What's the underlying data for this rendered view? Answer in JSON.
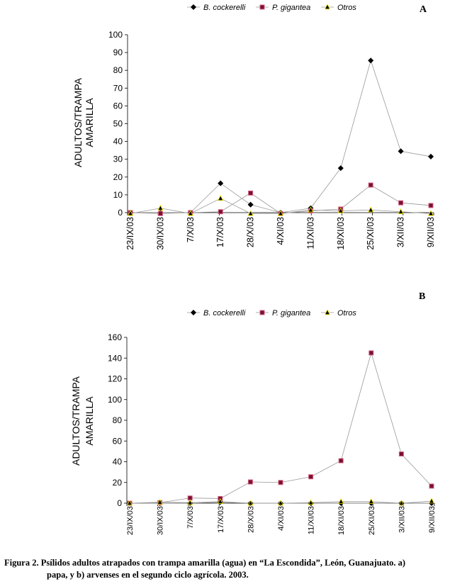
{
  "colors": {
    "line": "#999999",
    "axis": "#000000",
    "marker_bc": "#000000",
    "marker_pg": "#7a1030",
    "marker_otros": "#000000",
    "marker_otros_fill": "#f2e600",
    "marker_pg_fill": "#d06080"
  },
  "chart_data": [
    {
      "type": "line",
      "panel_label": "A",
      "ylabel_line1": "ADULTOS/TRAMPA",
      "ylabel_line2": "AMARILLA",
      "ylim": [
        0,
        100
      ],
      "yticks": [
        0,
        10,
        20,
        30,
        40,
        50,
        60,
        70,
        80,
        90,
        100
      ],
      "categories": [
        "23/IX/03",
        "30/IX/03",
        "7/X/03",
        "17/X/03",
        "28/X/03",
        "4/XI/03",
        "11/XI/03",
        "18/XI/03",
        "25/XI/03",
        "3/XII/03",
        "9/XII/03"
      ],
      "series": [
        {
          "name": "B. cockerelli",
          "marker": "diamond",
          "values": [
            0,
            0,
            0,
            16.5,
            4.5,
            0,
            2.5,
            25,
            85.5,
            34.5,
            31.5
          ]
        },
        {
          "name": "P. gigantea",
          "marker": "square",
          "values": [
            0,
            -0.5,
            0,
            0.5,
            11,
            -0.5,
            1,
            2,
            15.5,
            5.5,
            4
          ]
        },
        {
          "name": "Otros",
          "marker": "triangle",
          "values": [
            -0.5,
            2.5,
            -0.5,
            8,
            -0.5,
            -0.5,
            1.5,
            1,
            1.5,
            0.5,
            -0.5
          ]
        }
      ]
    },
    {
      "type": "line",
      "panel_label": "B",
      "ylabel_line1": "ADULTOS/TRAMPA",
      "ylabel_line2": "AMARILLA",
      "ylim": [
        0,
        160
      ],
      "yticks": [
        0,
        20,
        40,
        60,
        80,
        100,
        120,
        140,
        160
      ],
      "categories": [
        "23/IX/03",
        "30/IX/03",
        "7/X/03",
        "17/X/03",
        "28/X/03",
        "4/XI/03",
        "11/XI/03",
        "18/XI/03",
        "25/XI/03",
        "3/XII/03",
        "9/XII/03"
      ],
      "series": [
        {
          "name": "B. cockerelli",
          "marker": "diamond",
          "values": [
            0,
            0,
            0,
            1,
            0,
            0,
            0,
            0,
            0,
            0,
            0
          ]
        },
        {
          "name": "P. gigantea",
          "marker": "square",
          "values": [
            0,
            0.5,
            5,
            4.5,
            20.5,
            20,
            25.5,
            41,
            145,
            47.5,
            16.5
          ]
        },
        {
          "name": "Otros",
          "marker": "triangle",
          "values": [
            0,
            1,
            0.5,
            1.5,
            0,
            0,
            0.5,
            1.5,
            1.5,
            0,
            2
          ]
        }
      ]
    }
  ],
  "caption": {
    "line1": "Figura 2.  Psílidos adultos atrapados con trampa amarilla (agua) en “La Escondida”, León, Guanajuato. a)",
    "line2": "papa, y b) arvenses en el segundo ciclo agrícola. 2003."
  }
}
